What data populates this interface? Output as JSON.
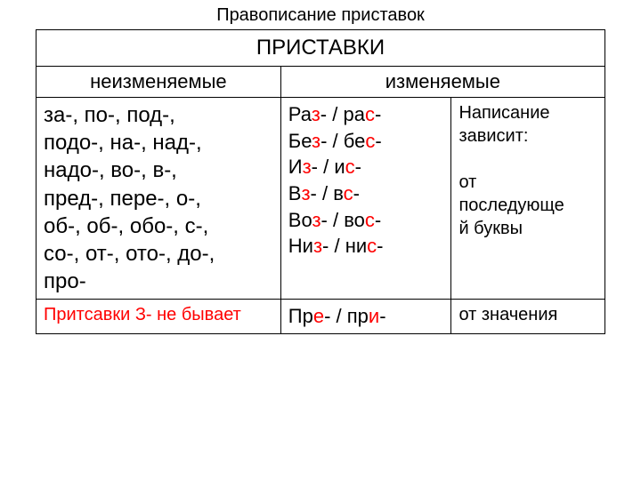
{
  "colors": {
    "text": "#000000",
    "highlight": "#ff0000",
    "background": "#ffffff",
    "border": "#000000"
  },
  "fontSizes": {
    "title": 20,
    "mergedHeader": 24,
    "subHeader": 22,
    "bodyLarge": 24,
    "bodyMedium": 22,
    "bodySmall": 20
  },
  "columnWidths": [
    "43%",
    "30%",
    "27%"
  ],
  "title": "Правописание приставок",
  "header": "ПРИСТАВКИ",
  "subheaders": {
    "left": "неизменяемые",
    "right": "изменяемые"
  },
  "row1": {
    "unchanged": "за-, по-, под-,\nподо-,  на-, над-,\nнадо-, во-, в-,\nпред-, пере-, о-,\nоб-, об-, обо-, с-,\nсо-, от-, ото-, до-,\nпро-",
    "pairs": [
      {
        "p": "Ра",
        "z": "з",
        "mid": "- / ра",
        "s": "с",
        "suf": "-"
      },
      {
        "p": "Бе",
        "z": "з",
        "mid": "- / бе",
        "s": "с",
        "suf": "-"
      },
      {
        "p": "И",
        "z": "з",
        "mid": "- / и",
        "s": "с",
        "suf": "-"
      },
      {
        "p": "В",
        "z": "з",
        "mid": "- / в",
        "s": "с",
        "suf": "-"
      },
      {
        "p": "Во",
        "z": "з",
        "mid": "- / во",
        "s": "с",
        "suf": "-"
      },
      {
        "p": "Ни",
        "z": "з",
        "mid": "- / ни",
        "s": "с",
        "suf": "-"
      }
    ],
    "depends": {
      "l1": " Написание",
      "l2": "зависит:",
      "l3": "от",
      "l4": "последующе",
      "l5": "й буквы"
    }
  },
  "row2": {
    "note": "Притсавки   З-  не бывает",
    "pre_pri": {
      "a": "Пр",
      "e": "е",
      "mid": "- / пр",
      "i": "и",
      "suf": "-"
    },
    "depends2": "от значения"
  }
}
